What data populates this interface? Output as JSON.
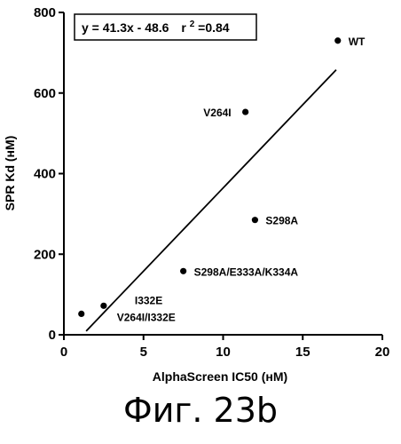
{
  "chart_data": {
    "type": "scatter",
    "xlabel": "AlphaScreen IC50 (нМ)",
    "ylabel": "SPR Kd (нМ)",
    "xlim": [
      0,
      20
    ],
    "ylim": [
      0,
      800
    ],
    "xticks": [
      0,
      5,
      10,
      15,
      20
    ],
    "yticks": [
      0,
      200,
      400,
      600,
      800
    ],
    "points": [
      {
        "x": 17.2,
        "y": 730,
        "label": "WT"
      },
      {
        "x": 11.4,
        "y": 553,
        "label": "V264I"
      },
      {
        "x": 12.0,
        "y": 285,
        "label": "S298A"
      },
      {
        "x": 7.5,
        "y": 158,
        "label": "S298A/E333A/K334A"
      },
      {
        "x": 2.5,
        "y": 72,
        "label": "I332E"
      },
      {
        "x": 1.1,
        "y": 52,
        "label": "V264I/I332E"
      }
    ],
    "fit": {
      "slope": 41.3,
      "intercept": -48.6,
      "x_range": [
        1.4,
        17.1
      ],
      "equation_text": "y = 41.3x - 48.6",
      "r2_prefix": "r",
      "r2_sup": "2",
      "r2_value": "=0.84"
    },
    "grid": false,
    "legend": "none"
  },
  "caption": "Фиг. 23b"
}
